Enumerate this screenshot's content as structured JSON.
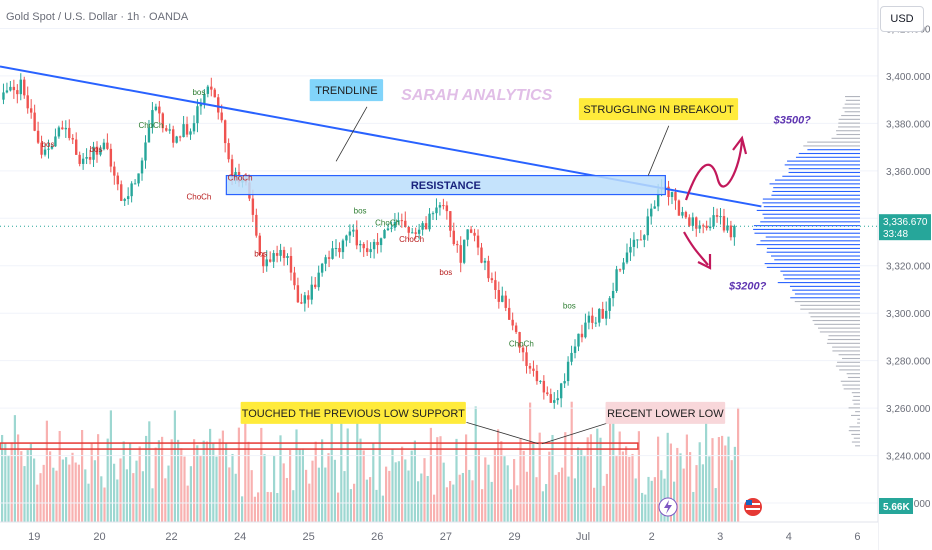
{
  "header": {
    "title": "Gold Spot / U.S. Dollar · 1h · OANDA",
    "currency_button": "USD"
  },
  "colors": {
    "up": "#26a69a",
    "down": "#ef5350",
    "trendline": "#2962ff",
    "resistance_fill": "#bbdefb",
    "support": "#e53935",
    "label_yellow": "#ffeb3b",
    "label_pink": "#f8d7da",
    "label_cyan": "#81d4fa",
    "watermark": "#e1bee7",
    "arrow": "#c2185b",
    "profile_blue": "#2962ff",
    "profile_gray": "#b2b5be"
  },
  "chart_data": {
    "type": "candlestick",
    "title": "Gold Spot / U.S. Dollar · 1h · OANDA",
    "y_axis": {
      "ticks": [
        3220,
        3240,
        3260,
        3280,
        3300,
        3320,
        3340,
        3360,
        3380,
        3400,
        3420
      ],
      "tick_labels": [
        "3,220.000",
        "3,240.000",
        "3,260.000",
        "3,280.000",
        "3,300.000",
        "3,320.000",
        "3,340.000",
        "3,360.000",
        "3,380.000",
        "3,400.000",
        "3,420.000"
      ],
      "range": [
        3212,
        3432
      ]
    },
    "x_axis": {
      "ticks": [
        0.2,
        1.15,
        2.2,
        3.2,
        4.2,
        5.2,
        6.2,
        7.2,
        8.2,
        9.2,
        10.2,
        11.2,
        12.2
      ],
      "tick_labels": [
        "19",
        "20",
        "22",
        "24",
        "25",
        "26",
        "27",
        "29",
        "Jul",
        "2",
        "3",
        "4",
        "6"
      ],
      "range": [
        -0.3,
        12.5
      ]
    },
    "last_price": {
      "value": 3336.67,
      "label": "3,336.670",
      "countdown": "33:48"
    },
    "volume_label": "5.66K",
    "anchors": [
      {
        "x": -0.3,
        "y": 3390
      },
      {
        "x": 0.0,
        "y": 3396
      },
      {
        "x": 0.3,
        "y": 3368
      },
      {
        "x": 0.6,
        "y": 3378
      },
      {
        "x": 0.9,
        "y": 3364
      },
      {
        "x": 1.2,
        "y": 3372
      },
      {
        "x": 1.5,
        "y": 3346
      },
      {
        "x": 1.7,
        "y": 3358
      },
      {
        "x": 1.95,
        "y": 3386
      },
      {
        "x": 2.2,
        "y": 3374
      },
      {
        "x": 2.45,
        "y": 3378
      },
      {
        "x": 2.8,
        "y": 3398
      },
      {
        "x": 3.0,
        "y": 3370
      },
      {
        "x": 3.1,
        "y": 3358
      },
      {
        "x": 3.3,
        "y": 3352
      },
      {
        "x": 3.5,
        "y": 3322
      },
      {
        "x": 3.85,
        "y": 3326
      },
      {
        "x": 4.1,
        "y": 3302
      },
      {
        "x": 4.4,
        "y": 3320
      },
      {
        "x": 4.8,
        "y": 3334
      },
      {
        "x": 5.1,
        "y": 3326
      },
      {
        "x": 5.5,
        "y": 3338
      },
      {
        "x": 5.8,
        "y": 3332
      },
      {
        "x": 6.15,
        "y": 3350
      },
      {
        "x": 6.4,
        "y": 3322
      },
      {
        "x": 6.55,
        "y": 3336
      },
      {
        "x": 6.8,
        "y": 3318
      },
      {
        "x": 7.1,
        "y": 3300
      },
      {
        "x": 7.35,
        "y": 3280
      },
      {
        "x": 7.55,
        "y": 3272
      },
      {
        "x": 7.7,
        "y": 3262
      },
      {
        "x": 7.85,
        "y": 3264
      },
      {
        "x": 8.0,
        "y": 3282
      },
      {
        "x": 8.25,
        "y": 3296
      },
      {
        "x": 8.5,
        "y": 3300
      },
      {
        "x": 8.75,
        "y": 3322
      },
      {
        "x": 9.1,
        "y": 3336
      },
      {
        "x": 9.3,
        "y": 3350
      },
      {
        "x": 9.45,
        "y": 3352
      },
      {
        "x": 9.6,
        "y": 3342
      },
      {
        "x": 9.9,
        "y": 3336
      },
      {
        "x": 10.15,
        "y": 3340
      },
      {
        "x": 10.35,
        "y": 3334
      },
      {
        "x": 10.45,
        "y": 3336.67
      }
    ],
    "volume_profile_peak_price": 3336,
    "annotations": [
      {
        "type": "trendline",
        "from": {
          "x": -0.3,
          "y": 3404
        },
        "to": {
          "x": 10.8,
          "y": 3345
        }
      },
      {
        "type": "resistance_zone",
        "x1": 3.0,
        "x2": 9.4,
        "y_low": 3350,
        "y_high": 3358,
        "label": "RESISTANCE"
      },
      {
        "type": "support_line",
        "x1": -0.3,
        "x2": 9.0,
        "y": 3244
      },
      {
        "type": "label",
        "text": "TRENDLINE",
        "x": 4.75,
        "y": 3394,
        "style": "cyan"
      },
      {
        "type": "label",
        "text": "SARAH ANALYTICS",
        "x": 6.65,
        "y": 3392,
        "style": "watermark"
      },
      {
        "type": "label",
        "text": "STRUGGLING IN BREAKOUT",
        "x": 9.3,
        "y": 3386,
        "style": "yellow"
      },
      {
        "type": "label",
        "text": "TOUCHED THE PREVIOUS LOW SUPPORT",
        "x": 4.85,
        "y": 3258,
        "style": "yellow"
      },
      {
        "type": "label",
        "text": "RECENT LOWER LOW",
        "x": 9.4,
        "y": 3258,
        "style": "pink"
      },
      {
        "type": "label",
        "text": "$3500?",
        "x": 11.25,
        "y": 3380,
        "style": "target"
      },
      {
        "type": "label",
        "text": "$3200?",
        "x": 10.6,
        "y": 3310,
        "style": "target"
      }
    ],
    "structure_labels": [
      {
        "text": "bos",
        "x": 2.6,
        "y": 3392,
        "kind": "up"
      },
      {
        "text": "ChoCh",
        "x": 1.9,
        "y": 3378,
        "kind": "up"
      },
      {
        "text": "bos",
        "x": 0.4,
        "y": 3370,
        "kind": "down"
      },
      {
        "text": "bos",
        "x": 1.1,
        "y": 3368,
        "kind": "down"
      },
      {
        "text": "ChoCh",
        "x": 2.6,
        "y": 3348,
        "kind": "down"
      },
      {
        "text": "ChoCh",
        "x": 3.2,
        "y": 3356,
        "kind": "down"
      },
      {
        "text": "bos",
        "x": 3.5,
        "y": 3324,
        "kind": "down"
      },
      {
        "text": "bos",
        "x": 4.95,
        "y": 3342,
        "kind": "up"
      },
      {
        "text": "ChoCh",
        "x": 5.35,
        "y": 3337,
        "kind": "up"
      },
      {
        "text": "ChoCh",
        "x": 5.7,
        "y": 3330,
        "kind": "down"
      },
      {
        "text": "bos",
        "x": 6.2,
        "y": 3316,
        "kind": "down"
      },
      {
        "text": "ChoCh",
        "x": 7.3,
        "y": 3286,
        "kind": "up"
      },
      {
        "text": "bos",
        "x": 8.0,
        "y": 3302,
        "kind": "up"
      }
    ],
    "pointer_lines": [
      {
        "from": {
          "x": 5.05,
          "y": 3387
        },
        "to": {
          "x": 4.6,
          "y": 3364
        }
      },
      {
        "from": {
          "x": 9.45,
          "y": 3379
        },
        "to": {
          "x": 9.15,
          "y": 3358
        }
      },
      {
        "from": {
          "x": 6.5,
          "y": 3254
        },
        "to": {
          "x": 7.55,
          "y": 3245
        }
      },
      {
        "from": {
          "x": 8.7,
          "y": 3255
        },
        "to": {
          "x": 7.6,
          "y": 3245
        }
      }
    ]
  }
}
